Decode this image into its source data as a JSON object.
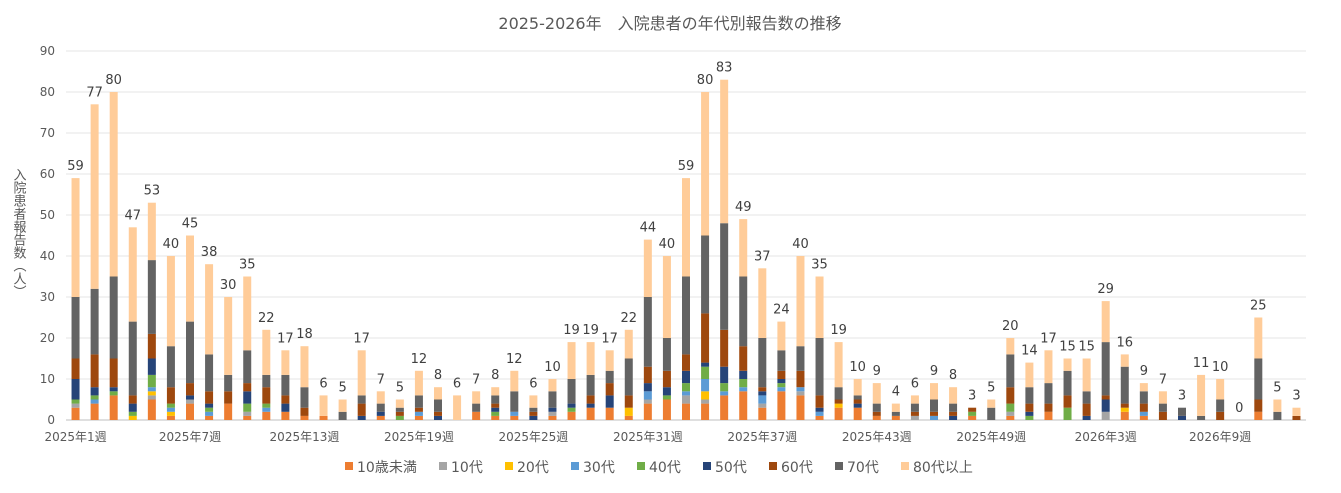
{
  "chart_data": {
    "type": "bar",
    "stacked": true,
    "title": "2025-2026年　入院患者の年代別報告数の推移",
    "xlabel": "",
    "ylabel": "入院患者報告数（人）",
    "ylim": [
      0,
      90
    ],
    "yticks": [
      0,
      10,
      20,
      30,
      40,
      50,
      60,
      70,
      80,
      90
    ],
    "grid": true,
    "legend_position": "bottom",
    "xtick_labels_shown": [
      "2025年1週",
      "2025年7週",
      "2025年13週",
      "2025年19週",
      "2025年25週",
      "2025年31週",
      "2025年37週",
      "2025年43週",
      "2025年49週",
      "2026年3週",
      "2026年9週"
    ],
    "xtick_every": 6,
    "totals": [
      59,
      77,
      80,
      47,
      53,
      40,
      45,
      38,
      30,
      35,
      22,
      17,
      18,
      6,
      5,
      17,
      7,
      5,
      12,
      8,
      6,
      7,
      8,
      12,
      6,
      10,
      19,
      19,
      17,
      22,
      44,
      40,
      59,
      80,
      83,
      49,
      37,
      24,
      40,
      35,
      19,
      10,
      9,
      4,
      6,
      9,
      8,
      3,
      5,
      20,
      14,
      17,
      15,
      15,
      29,
      16,
      9,
      7,
      3,
      11,
      10,
      0,
      25,
      5,
      3
    ],
    "series": [
      {
        "name": "10歳未満",
        "color": "#ED7D31",
        "values": [
          3,
          4,
          6,
          0,
          5,
          1,
          4,
          1,
          4,
          1,
          2,
          2,
          1,
          1,
          0,
          0,
          1,
          0,
          1,
          0,
          0,
          2,
          1,
          1,
          0,
          1,
          2,
          3,
          3,
          1,
          4,
          5,
          4,
          4,
          6,
          7,
          3,
          7,
          6,
          1,
          3,
          3,
          1,
          1,
          0,
          0,
          0,
          1,
          0,
          1,
          0,
          2,
          0,
          0,
          0,
          2,
          1,
          0,
          0,
          0,
          0,
          0,
          2,
          0,
          0
        ]
      },
      {
        "name": "10代",
        "color": "#A5A5A5",
        "values": [
          1,
          0,
          0,
          0,
          1,
          0,
          1,
          0,
          0,
          1,
          0,
          0,
          0,
          0,
          0,
          0,
          0,
          0,
          0,
          0,
          0,
          0,
          0,
          0,
          0,
          1,
          0,
          0,
          0,
          0,
          1,
          0,
          2,
          1,
          0,
          0,
          1,
          0,
          1,
          0,
          0,
          0,
          0,
          0,
          1,
          0,
          0,
          0,
          0,
          1,
          0,
          0,
          0,
          0,
          2,
          0,
          0,
          0,
          0,
          0,
          0,
          0,
          0,
          0,
          0
        ]
      },
      {
        "name": "20代",
        "color": "#FFC000",
        "values": [
          0,
          0,
          0,
          1,
          1,
          1,
          0,
          0,
          0,
          0,
          0,
          0,
          0,
          0,
          0,
          0,
          0,
          0,
          0,
          0,
          0,
          0,
          0,
          0,
          0,
          0,
          0,
          0,
          0,
          2,
          0,
          0,
          0,
          2,
          0,
          0,
          0,
          0,
          0,
          0,
          1,
          0,
          0,
          0,
          0,
          0,
          0,
          0,
          0,
          0,
          0,
          0,
          0,
          0,
          0,
          1,
          0,
          0,
          0,
          0,
          0,
          0,
          0,
          0,
          0
        ]
      },
      {
        "name": "30代",
        "color": "#5B9BD5",
        "values": [
          0,
          1,
          0,
          0,
          1,
          1,
          0,
          1,
          0,
          0,
          1,
          0,
          0,
          0,
          0,
          0,
          0,
          0,
          1,
          0,
          0,
          0,
          0,
          1,
          0,
          0,
          0,
          0,
          0,
          0,
          2,
          0,
          1,
          3,
          1,
          1,
          2,
          1,
          1,
          1,
          0,
          0,
          0,
          0,
          0,
          1,
          0,
          0,
          0,
          0,
          0,
          0,
          0,
          0,
          0,
          0,
          1,
          0,
          0,
          0,
          0,
          0,
          0,
          0,
          0
        ]
      },
      {
        "name": "40代",
        "color": "#70AD47",
        "values": [
          1,
          1,
          1,
          1,
          3,
          1,
          0,
          1,
          0,
          2,
          1,
          0,
          0,
          0,
          0,
          0,
          0,
          1,
          0,
          0,
          0,
          0,
          1,
          0,
          0,
          0,
          1,
          0,
          0,
          0,
          0,
          1,
          2,
          3,
          2,
          2,
          0,
          1,
          0,
          0,
          0,
          0,
          0,
          0,
          0,
          0,
          0,
          1,
          0,
          2,
          1,
          0,
          3,
          0,
          0,
          0,
          0,
          0,
          0,
          0,
          0,
          0,
          0,
          0,
          0
        ]
      },
      {
        "name": "50代",
        "color": "#264478",
        "values": [
          5,
          2,
          1,
          2,
          4,
          0,
          1,
          1,
          0,
          3,
          0,
          2,
          0,
          0,
          0,
          1,
          1,
          0,
          0,
          1,
          0,
          0,
          1,
          0,
          1,
          1,
          1,
          1,
          3,
          0,
          2,
          2,
          3,
          1,
          4,
          2,
          1,
          1,
          0,
          1,
          0,
          1,
          0,
          0,
          0,
          0,
          1,
          0,
          0,
          0,
          1,
          0,
          0,
          1,
          3,
          0,
          0,
          0,
          1,
          0,
          0,
          0,
          0,
          0,
          0
        ]
      },
      {
        "name": "60代",
        "color": "#9E480E",
        "values": [
          5,
          8,
          7,
          2,
          6,
          4,
          3,
          3,
          3,
          2,
          4,
          2,
          2,
          0,
          0,
          3,
          0,
          1,
          1,
          1,
          0,
          0,
          1,
          0,
          1,
          0,
          0,
          2,
          3,
          3,
          4,
          4,
          4,
          12,
          9,
          6,
          1,
          2,
          4,
          3,
          1,
          1,
          1,
          0,
          1,
          1,
          1,
          1,
          0,
          4,
          2,
          2,
          3,
          3,
          1,
          1,
          2,
          2,
          0,
          0,
          2,
          0,
          3,
          0,
          1
        ]
      },
      {
        "name": "70代",
        "color": "#636363",
        "values": [
          15,
          16,
          20,
          18,
          18,
          10,
          15,
          9,
          4,
          8,
          3,
          5,
          5,
          0,
          2,
          2,
          2,
          1,
          3,
          3,
          0,
          2,
          2,
          5,
          1,
          4,
          6,
          5,
          3,
          9,
          17,
          8,
          19,
          19,
          26,
          17,
          12,
          5,
          6,
          14,
          3,
          1,
          2,
          1,
          2,
          3,
          2,
          0,
          3,
          8,
          4,
          5,
          6,
          3,
          13,
          9,
          3,
          2,
          2,
          1,
          3,
          0,
          10,
          2,
          0
        ]
      },
      {
        "name": "80代以上",
        "color": "#FFCC99",
        "values": [
          29,
          45,
          45,
          23,
          14,
          22,
          21,
          22,
          19,
          18,
          11,
          6,
          10,
          5,
          3,
          11,
          3,
          2,
          6,
          3,
          6,
          3,
          2,
          5,
          3,
          3,
          9,
          8,
          5,
          7,
          14,
          20,
          24,
          35,
          35,
          14,
          17,
          7,
          22,
          15,
          11,
          4,
          5,
          2,
          2,
          4,
          4,
          0,
          2,
          4,
          6,
          8,
          3,
          8,
          10,
          3,
          2,
          3,
          0,
          10,
          5,
          0,
          10,
          3,
          2
        ]
      }
    ]
  }
}
